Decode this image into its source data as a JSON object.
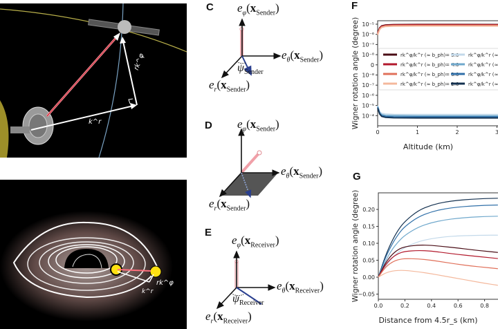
{
  "panels": {
    "C": {
      "label": "C",
      "phi": "Sender",
      "theta": "Sender",
      "r": "Sender",
      "psi": "Sender"
    },
    "D": {
      "label": "D",
      "phi": "Sender",
      "theta": "Sender",
      "r": "Sender"
    },
    "E": {
      "label": "E",
      "phi": "Receiver",
      "theta": "Receiver",
      "r": "Receiver",
      "psi": "Receiver"
    },
    "F": {
      "label": "F"
    },
    "G": {
      "label": "G"
    }
  },
  "illustrations": {
    "top": {
      "kr_label": "k^r",
      "rkphi_label": "rk^φ"
    },
    "bottom": {
      "kr_label": "k^r",
      "rkphi_label": "rk^φ"
    }
  },
  "colors": {
    "red_dark": "#4a0d16",
    "red2": "#b2182b",
    "red3": "#e0705a",
    "red4": "#f4b89c",
    "blue1": "#c3d9ea",
    "blue2": "#6fa8cc",
    "blue3": "#2f6fa8",
    "blue4": "#13304f",
    "arrow_pink": "#f0a0a8",
    "arrow_blue": "#2a3f8f"
  },
  "chart_data": [
    {
      "type": "line",
      "panel": "F",
      "xlabel": "Altitude (km)",
      "ylabel": "Wigner rotation angle (degree)",
      "yscale": "symlog",
      "x_ticks": [
        "0",
        "1",
        "2",
        "3"
      ],
      "y_ticks": [
        "10⁻⁵",
        "10⁻⁶",
        "10⁻⁷",
        "10⁻⁸",
        "0",
        "10⁻⁸",
        "10⁻⁷",
        "10⁻⁶",
        "10⁻⁵",
        "10⁻⁴"
      ],
      "x": [
        0,
        0.05,
        0.1,
        0.2,
        0.4,
        1,
        2,
        3.1
      ],
      "legend_placement": "center",
      "series": [
        {
          "name": "rk^φ/k^r (≈ b_ph)= 5.0",
          "color": "#4a0d16",
          "values": [
            1.5e-06,
            4.5e-06,
            7e-06,
            8.5e-06,
            9.2e-06,
            9.5e-06,
            9.5e-06,
            9.4e-06
          ]
        },
        {
          "name": "rk^φ/k^r (≈ b_ph)= 4.0",
          "color": "#b2182b",
          "values": [
            1.3e-06,
            4e-06,
            6.3e-06,
            7.8e-06,
            8.5e-06,
            8.8e-06,
            8.8e-06,
            8.7e-06
          ]
        },
        {
          "name": "rk^φ/k^r (≈ b_ph)= 3.0",
          "color": "#e0705a",
          "values": [
            1.1e-06,
            3.5e-06,
            5.5e-06,
            7e-06,
            7.6e-06,
            7.8e-06,
            7.8e-06,
            7.7e-06
          ]
        },
        {
          "name": "rk^φ/k^r (≈ b_ph)= 2.0",
          "color": "#f4b89c",
          "values": [
            9e-07,
            3e-06,
            4.8e-06,
            6e-06,
            6.5e-06,
            6.7e-06,
            6.7e-06,
            6.6e-06
          ]
        },
        {
          "name": "rk^φ/k^r (≈ b_ph)=",
          "color": "#c3d9ea",
          "values": [
            -1e-05,
            -4e-05,
            -6e-05,
            -7e-05,
            -7.5e-05,
            -7.8e-05,
            -7.8e-05,
            -7.8e-05
          ]
        },
        {
          "name": "rk^φ/k^r (≈ b_ph)=",
          "color": "#6fa8cc",
          "values": [
            -1.2e-05,
            -5e-05,
            -8e-05,
            -9.5e-05,
            -0.0001,
            -0.000105,
            -0.000105,
            -0.000105
          ]
        },
        {
          "name": "rk^φ/k^r (≈ b_ph)=",
          "color": "#2f6fa8",
          "values": [
            -1.5e-05,
            -6e-05,
            -0.0001,
            -0.00012,
            -0.00013,
            -0.000135,
            -0.000135,
            -0.000135
          ]
        },
        {
          "name": "rk^φ/k^r (≈ b_ph)=",
          "color": "#13304f",
          "values": [
            -1.8e-05,
            -7e-05,
            -0.00012,
            -0.00015,
            -0.000165,
            -0.00017,
            -0.00017,
            -0.00017
          ]
        }
      ]
    },
    {
      "type": "line",
      "panel": "G",
      "xlabel": "Distance from 4.5r_s (km)",
      "ylabel": "Wigner rotation angle (degree)",
      "x_ticks": [
        "0.0",
        "0.2",
        "0.4",
        "0.6",
        "0.8"
      ],
      "y_ticks": [
        "0.20",
        "0.15",
        "0.10",
        "0.05",
        "0.00",
        "−0.05"
      ],
      "ylim": [
        -0.055,
        0.245
      ],
      "x": [
        0,
        0.05,
        0.1,
        0.15,
        0.2,
        0.3,
        0.4,
        0.5,
        0.6,
        0.7,
        0.8,
        0.9
      ],
      "series": [
        {
          "color": "#13304f",
          "values": [
            0,
            0.06,
            0.105,
            0.14,
            0.165,
            0.197,
            0.213,
            0.222,
            0.227,
            0.23,
            0.232,
            0.233
          ]
        },
        {
          "color": "#2f6fa8",
          "values": [
            0,
            0.055,
            0.095,
            0.127,
            0.15,
            0.178,
            0.193,
            0.202,
            0.207,
            0.21,
            0.212,
            0.213
          ]
        },
        {
          "color": "#6fa8cc",
          "values": [
            0,
            0.045,
            0.08,
            0.105,
            0.124,
            0.148,
            0.161,
            0.169,
            0.174,
            0.177,
            0.179,
            0.18
          ]
        },
        {
          "color": "#c3d9ea",
          "values": [
            0,
            0.03,
            0.055,
            0.074,
            0.088,
            0.105,
            0.114,
            0.119,
            0.122,
            0.123,
            0.124,
            0.124
          ]
        },
        {
          "color": "#4a0d16",
          "values": [
            0,
            0.04,
            0.066,
            0.082,
            0.09,
            0.095,
            0.094,
            0.09,
            0.086,
            0.081,
            0.077,
            0.073
          ]
        },
        {
          "color": "#b2182b",
          "values": [
            0,
            0.035,
            0.057,
            0.07,
            0.076,
            0.079,
            0.077,
            0.072,
            0.067,
            0.063,
            0.059,
            0.055
          ]
        },
        {
          "color": "#e0705a",
          "values": [
            0,
            0.028,
            0.044,
            0.052,
            0.055,
            0.054,
            0.05,
            0.044,
            0.038,
            0.033,
            0.029,
            0.025
          ]
        },
        {
          "color": "#f4b89c",
          "values": [
            0,
            0.012,
            0.018,
            0.02,
            0.02,
            0.016,
            0.01,
            0.003,
            -0.004,
            -0.011,
            -0.018,
            -0.024
          ]
        }
      ]
    }
  ]
}
